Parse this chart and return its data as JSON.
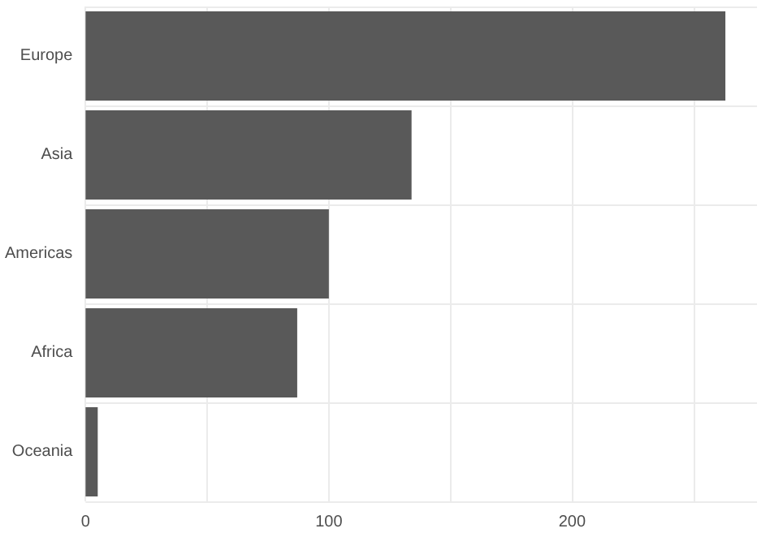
{
  "chart_data": {
    "type": "bar",
    "orientation": "horizontal",
    "categories": [
      "Europe",
      "Asia",
      "Americas",
      "Africa",
      "Oceania"
    ],
    "values": [
      263,
      134,
      100,
      87,
      5
    ],
    "color": "#595959",
    "xlim": [
      0,
      276
    ],
    "xticks": [
      0,
      {
        "value": 50,
        "label": null
      },
      100,
      {
        "value": 150,
        "label": null
      },
      200,
      {
        "value": 250,
        "label": null
      }
    ],
    "grid": true
  }
}
